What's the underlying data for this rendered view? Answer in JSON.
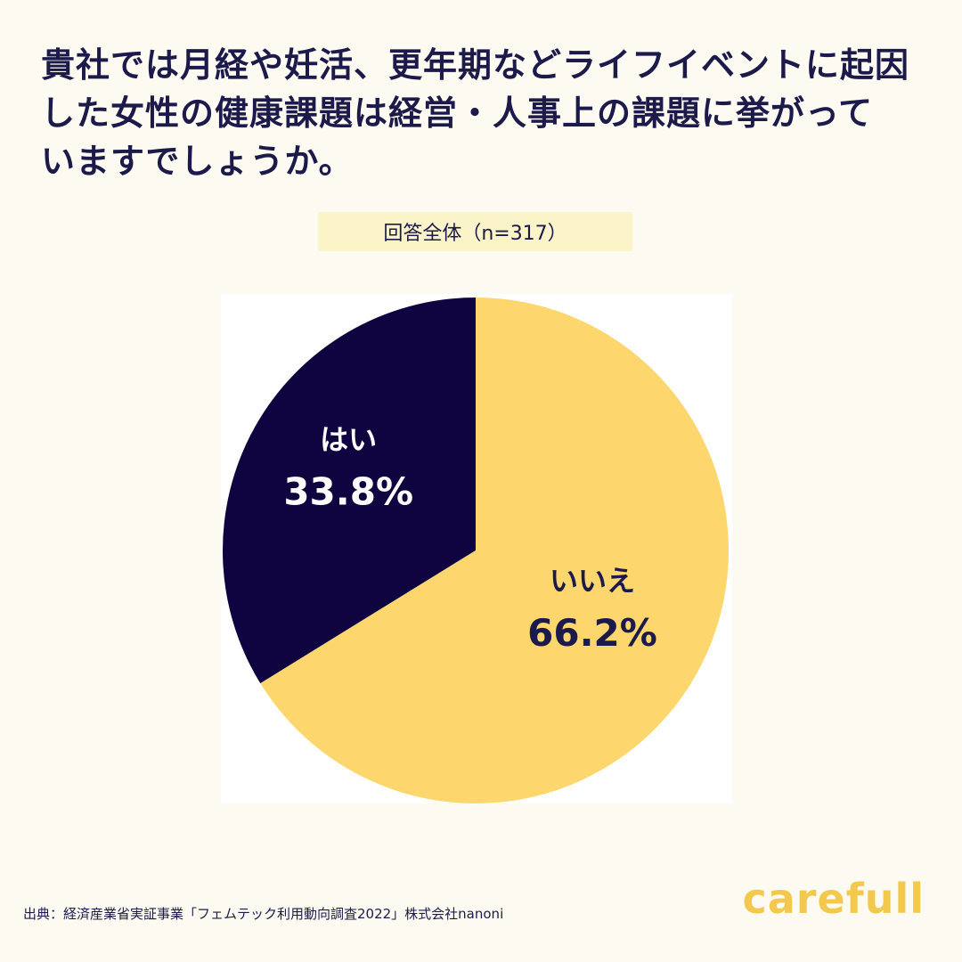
{
  "title_lines": [
    "貴社では月経や妊活、更年期などライフイベントに起因",
    "した女性の健康課題は経営・人事上の課題に挙がって",
    "いますでしょうか。"
  ],
  "sample_label": "回答全体（n=317）",
  "source": "出典：経済産業省実証事業「フェムテック利用動向調査2022」株式会社nanoni",
  "logo": "carefull",
  "chart_data": {
    "type": "pie",
    "slices": [
      {
        "label": "はい",
        "value": 33.8,
        "display": "33.8%",
        "color": "#0F0440",
        "text_color": "#FFFFFF"
      },
      {
        "label": "いいえ",
        "value": 66.2,
        "display": "66.2%",
        "color": "#FDD66E",
        "text_color": "#1B1A4B"
      }
    ],
    "start": "12 o'clock",
    "direction": "counterclockwise for はい"
  }
}
